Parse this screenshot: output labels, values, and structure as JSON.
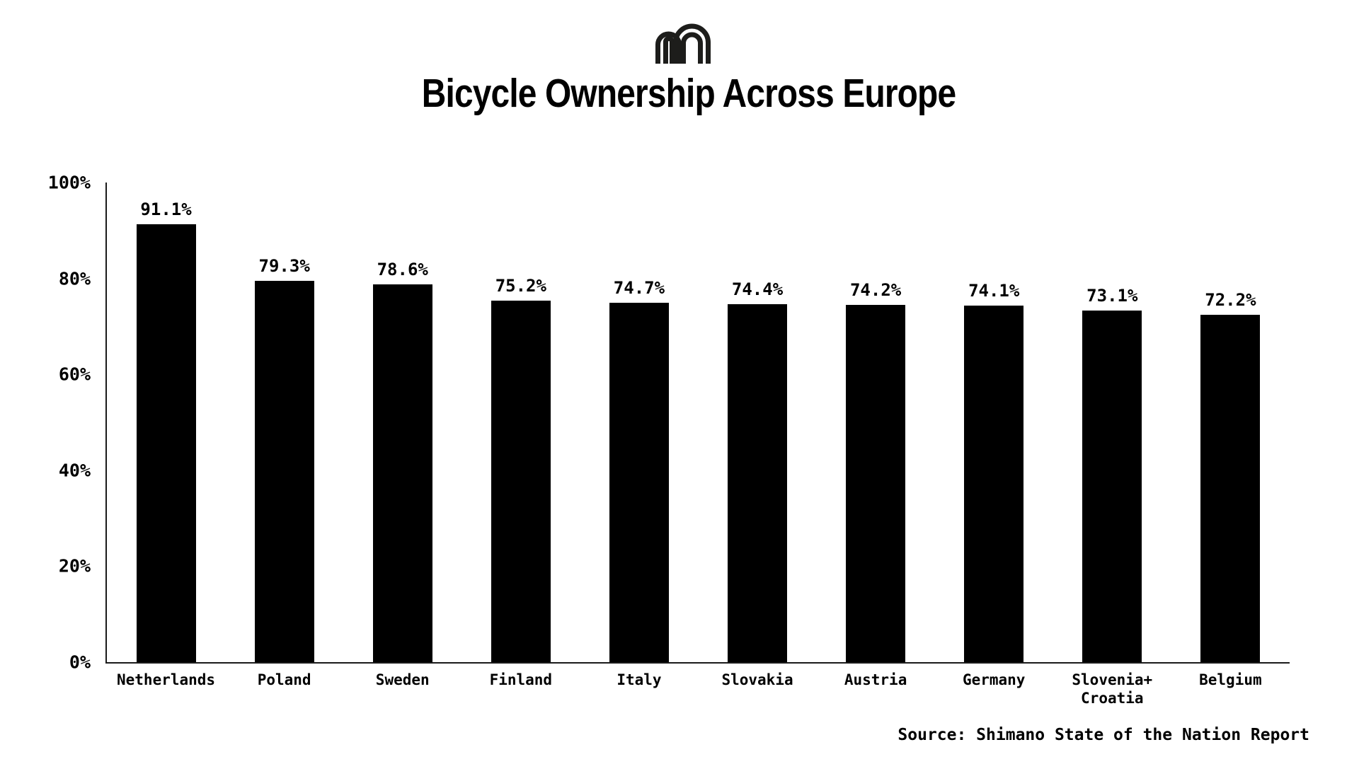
{
  "page": {
    "background_color": "#ffffff",
    "text_color": "#000000",
    "axis_color": "#1a1a1a"
  },
  "header": {
    "logo_icon": "double-arch-m-monogram",
    "logo_color": "#1d1d1b",
    "title": "Bicycle Ownership Across Europe"
  },
  "chart_data": {
    "type": "bar",
    "title": "Bicycle Ownership Across Europe",
    "categories": [
      "Netherlands",
      "Poland",
      "Sweden",
      "Finland",
      "Italy",
      "Slovakia",
      "Austria",
      "Germany",
      "Slovenia+\nCroatia",
      "Belgium"
    ],
    "values": [
      91.1,
      79.3,
      78.6,
      75.2,
      74.7,
      74.4,
      74.2,
      74.1,
      73.1,
      72.2
    ],
    "value_labels": [
      "91.1%",
      "79.3%",
      "78.6%",
      "75.2%",
      "74.7%",
      "74.4%",
      "74.2%",
      "74.1%",
      "73.1%",
      "72.2%"
    ],
    "xlabel": "",
    "ylabel": "",
    "ylim": [
      0,
      100
    ],
    "yticks": [
      "0%",
      "20%",
      "40%",
      "60%",
      "80%",
      "100%"
    ],
    "ytick_values": [
      0,
      20,
      40,
      60,
      80,
      100
    ],
    "bar_color": "#000000",
    "grid": false,
    "legend": "none"
  },
  "footer": {
    "source": "Source: Shimano State of the Nation Report"
  }
}
